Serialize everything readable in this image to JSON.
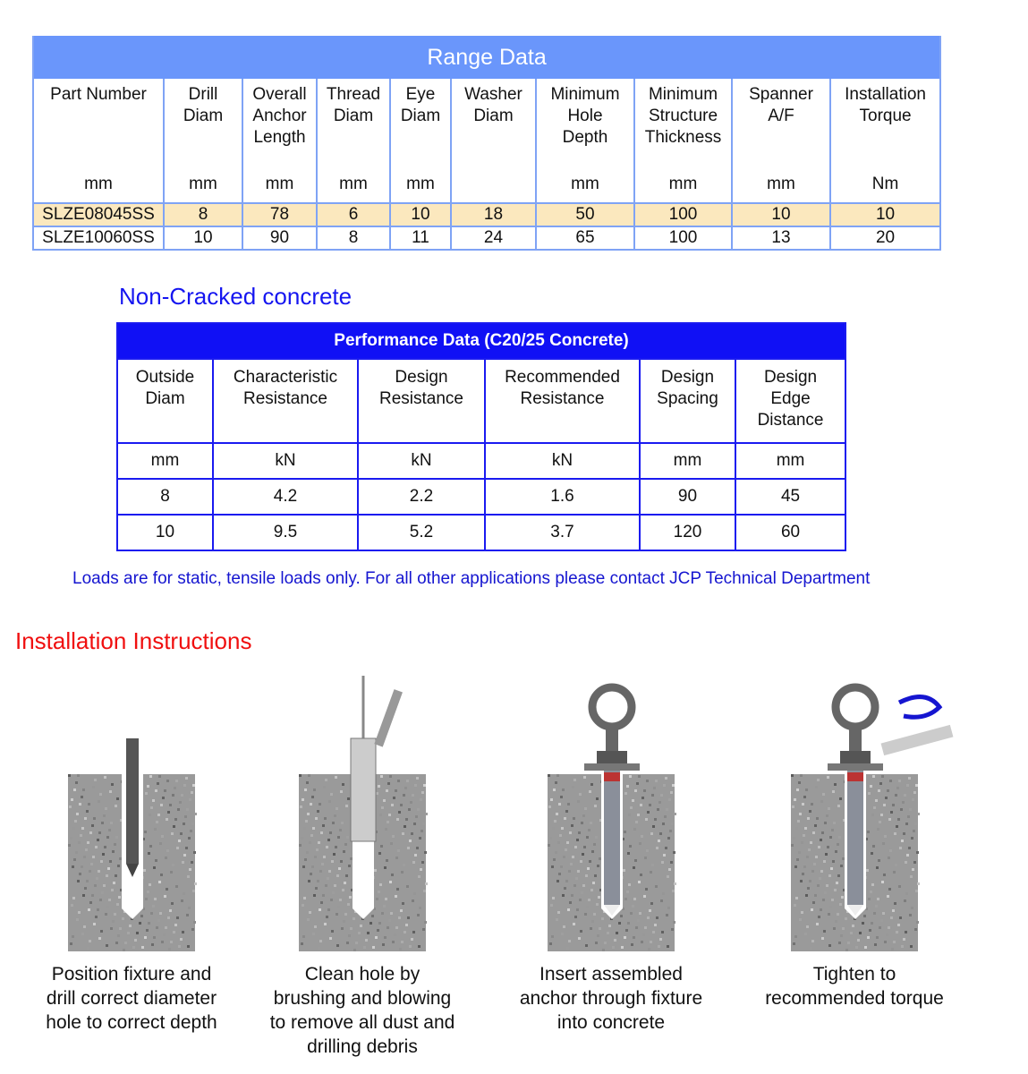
{
  "range_table": {
    "title": "Range Data",
    "headers": [
      "Part Number",
      "Drill\nDiam",
      "Overall\nAnchor\nLength",
      "Thread\nDiam",
      "Eye\nDiam",
      "Washer\nDiam",
      "Minimum\nHole\nDepth",
      "Minimum\nStructure\nThickness",
      "Spanner\nA/F",
      "Installation\nTorque"
    ],
    "units": [
      "mm",
      "mm",
      "mm",
      "mm",
      "mm",
      "",
      "mm",
      "mm",
      "mm",
      "Nm"
    ],
    "rows": [
      [
        "SLZE08045SS",
        "8",
        "78",
        "6",
        "10",
        "18",
        "50",
        "100",
        "10",
        "10"
      ],
      [
        "SLZE10060SS",
        "10",
        "90",
        "8",
        "11",
        "24",
        "65",
        "100",
        "13",
        "20"
      ]
    ],
    "highlight_color": "#fbe8be",
    "header_color": "#6a96fb"
  },
  "non_cracked_heading": "Non-Cracked concrete",
  "perf_table": {
    "title": "Performance Data (C20/25 Concrete)",
    "headers": [
      "Outside\nDiam",
      "Characteristic\nResistance",
      "Design\nResistance",
      "Recommended\nResistance",
      "Design\nSpacing",
      "Design\nEdge\nDistance"
    ],
    "units": [
      "mm",
      "kN",
      "kN",
      "kN",
      "mm",
      "mm"
    ],
    "rows": [
      [
        "8",
        "4.2",
        "2.2",
        "1.6",
        "90",
        "45"
      ],
      [
        "10",
        "9.5",
        "5.2",
        "3.7",
        "120",
        "60"
      ]
    ],
    "header_color": "#1010f5"
  },
  "note": "Loads are for static, tensile loads only.  For all other applications please contact JCP Technical Department",
  "install_heading": "Installation Instructions",
  "steps": [
    {
      "icon": "drill-in-hole-icon",
      "caption": "Position fixture and\ndrill correct diameter\nhole to correct depth"
    },
    {
      "icon": "brush-hole-icon",
      "caption": "Clean hole by\nbrushing and blowing\nto remove all dust and\ndrilling debris"
    },
    {
      "icon": "insert-anchor-icon",
      "caption": "Insert assembled\nanchor through fixture\ninto concrete"
    },
    {
      "icon": "tighten-torque-icon",
      "caption": "Tighten to\nrecommended torque"
    }
  ]
}
